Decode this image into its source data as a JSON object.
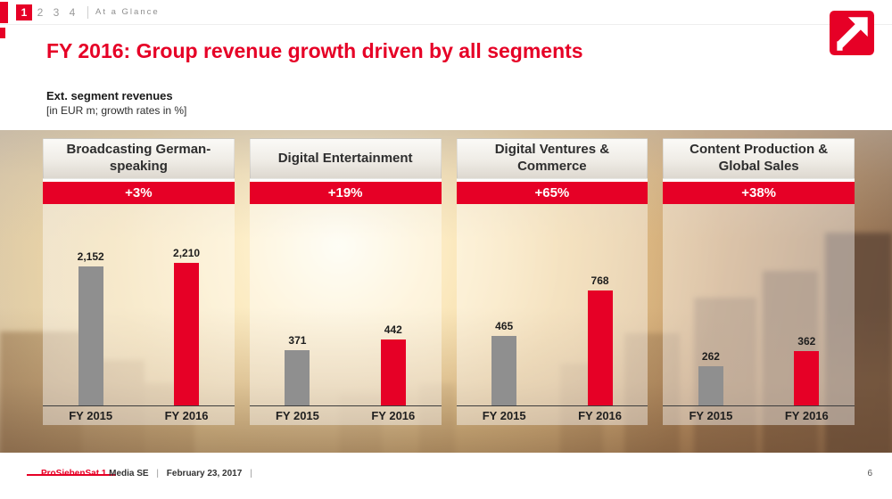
{
  "nav": {
    "pages": [
      "1",
      "2",
      "3",
      "4"
    ],
    "active_page": "1",
    "section": "At a Glance"
  },
  "header": {
    "title": "FY 2016: Group revenue growth driven by all segments"
  },
  "legend": {
    "line1": "Ext. segment revenues",
    "line2": "[in EUR m; growth rates in %]"
  },
  "colors": {
    "brand_red": "#e60026",
    "bar_gray": "#8f8f8f"
  },
  "chart_data": [
    {
      "type": "bar",
      "title": "Broadcasting German-speaking",
      "growth_label": "+3%",
      "categories": [
        "FY 2015",
        "FY 2016"
      ],
      "values": [
        2152,
        2210
      ],
      "value_labels": [
        "2,152",
        "2,210"
      ],
      "ylim": [
        0,
        2210
      ],
      "series_colors": [
        "#8f8f8f",
        "#e60026"
      ]
    },
    {
      "type": "bar",
      "title": "Digital Entertainment",
      "growth_label": "+19%",
      "categories": [
        "FY 2015",
        "FY 2016"
      ],
      "values": [
        371,
        442
      ],
      "value_labels": [
        "371",
        "442"
      ],
      "ylim": [
        0,
        950
      ],
      "series_colors": [
        "#8f8f8f",
        "#e60026"
      ]
    },
    {
      "type": "bar",
      "title": "Digital Ventures & Commerce",
      "growth_label": "+65%",
      "categories": [
        "FY 2015",
        "FY 2016"
      ],
      "values": [
        465,
        768
      ],
      "value_labels": [
        "465",
        "768"
      ],
      "ylim": [
        0,
        950
      ],
      "series_colors": [
        "#8f8f8f",
        "#e60026"
      ]
    },
    {
      "type": "bar",
      "title": "Content Production & Global Sales",
      "growth_label": "+38%",
      "categories": [
        "FY 2015",
        "FY 2016"
      ],
      "values": [
        262,
        362
      ],
      "value_labels": [
        "262",
        "362"
      ],
      "ylim": [
        0,
        950
      ],
      "series_colors": [
        "#8f8f8f",
        "#e60026"
      ]
    }
  ],
  "footer": {
    "brand": "ProSiebenSat.1",
    "company": "Media SE",
    "sep1": "|",
    "date": "February 23, 2017",
    "sep2": "|",
    "page_number": "6"
  }
}
